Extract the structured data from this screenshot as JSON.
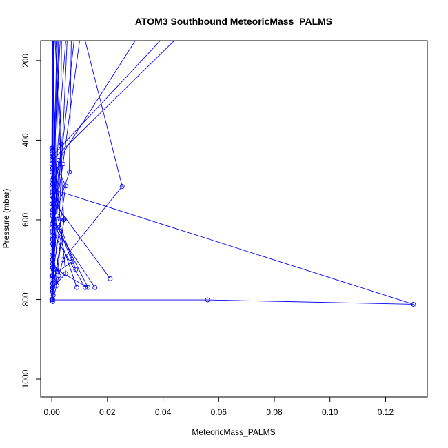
{
  "chart_data": {
    "type": "scatter",
    "title": "ATOM3 Southbound MeteoricMass_PALMS",
    "xlabel": "MeteoricMass_PALMS",
    "ylabel": "Pressure (mbar)",
    "xlim": [
      -0.004,
      0.135
    ],
    "ylim": [
      1045,
      150
    ],
    "y_reversed": true,
    "grid": false,
    "x_ticks": [
      0.0,
      0.02,
      0.04,
      0.06,
      0.08,
      0.1,
      0.12
    ],
    "x_tick_labels": [
      "0.00",
      "0.02",
      "0.04",
      "0.06",
      "0.08",
      "0.10",
      "0.12"
    ],
    "y_ticks": [
      200,
      400,
      600,
      800,
      1000
    ],
    "y_tick_labels": [
      "200",
      "400",
      "600",
      "800",
      "1000"
    ],
    "series": [
      {
        "points": [
          [
            0.0004,
            150
          ],
          [
            0.0014,
            480
          ],
          [
            0.0008,
            640
          ],
          [
            0.0003,
            800
          ]
        ]
      },
      {
        "points": [
          [
            0.0015,
            150
          ],
          [
            0.0035,
            410
          ],
          [
            0.0013,
            560
          ],
          [
            0.0003,
            760
          ]
        ]
      },
      {
        "points": [
          [
            0.0002,
            150
          ],
          [
            0.0004,
            420
          ],
          [
            0.0006,
            600
          ],
          [
            0.0025,
            740
          ]
        ]
      },
      {
        "points": [
          [
            0.0035,
            150
          ],
          [
            0.003,
            470
          ],
          [
            0.0015,
            620
          ],
          [
            0.0003,
            770
          ]
        ]
      },
      {
        "points": [
          [
            0.0024,
            150
          ],
          [
            0.0015,
            520
          ],
          [
            0.0018,
            590
          ],
          [
            0.0086,
            725
          ]
        ]
      },
      {
        "points": [
          [
            0.01,
            150
          ],
          [
            0.004,
            460
          ],
          [
            0.0002,
            630
          ],
          [
            0.012,
            770
          ]
        ]
      },
      {
        "points": [
          [
            0.007,
            150
          ],
          [
            0.0063,
            480
          ],
          [
            0.0002,
            610
          ],
          [
            0.0155,
            770
          ]
        ]
      },
      {
        "points": [
          [
            0.03,
            150
          ],
          [
            0.0025,
            450
          ],
          [
            0.0002,
            590
          ],
          [
            0.009,
            770
          ]
        ]
      },
      {
        "points": [
          [
            0.044,
            150
          ],
          [
            0.0002,
            450
          ],
          [
            0.0012,
            560
          ],
          [
            0.021,
            748
          ]
        ]
      },
      {
        "points": [
          [
            0.039,
            150
          ],
          [
            0.0001,
            440
          ],
          [
            0.005,
            515
          ],
          [
            0.0003,
            740
          ]
        ]
      },
      {
        "points": [
          [
            0.012,
            150
          ],
          [
            0.0253,
            516
          ],
          [
            0.004,
            700
          ],
          [
            0.0003,
            805
          ]
        ]
      },
      {
        "points": [
          [
            0.008,
            150
          ],
          [
            0.002,
            530
          ],
          [
            0.005,
            735
          ],
          [
            0.0003,
            770
          ]
        ]
      },
      {
        "points": [
          [
            0.005,
            150
          ],
          [
            0.001,
            525
          ],
          [
            0.13,
            812
          ],
          [
            0.056,
            801
          ],
          [
            0.0003,
            801
          ]
        ]
      },
      {
        "points": [
          [
            0.003,
            150
          ],
          [
            0.0002,
            530
          ],
          [
            0.0045,
            598
          ],
          [
            0.0008,
            760
          ]
        ]
      },
      {
        "points": [
          [
            0.002,
            150
          ],
          [
            0.0007,
            600
          ],
          [
            0.013,
            770
          ],
          [
            0.0003,
            720
          ]
        ]
      },
      {
        "points": [
          [
            0.0055,
            150
          ],
          [
            0.0025,
            620
          ],
          [
            0.0073,
            705
          ],
          [
            0.0003,
            740
          ]
        ]
      },
      {
        "points": [
          [
            0.0006,
            150
          ],
          [
            0.0003,
            660
          ],
          [
            0.0018,
            765
          ],
          [
            0.0002,
            720
          ]
        ]
      },
      {
        "points": [
          [
            0.0012,
            150
          ],
          [
            0.0043,
            600
          ],
          [
            0.002,
            730
          ],
          [
            0.0003,
            700
          ]
        ]
      },
      {
        "points": [
          [
            0.0009,
            150
          ],
          [
            0.0002,
            500
          ],
          [
            0.0004,
            690
          ],
          [
            0.0002,
            770
          ]
        ]
      },
      {
        "points": [
          [
            0.0018,
            150
          ],
          [
            0.0005,
            560
          ],
          [
            0.0012,
            640
          ],
          [
            0.0002,
            780
          ]
        ]
      },
      {
        "points": [
          [
            0.0002,
            150
          ],
          [
            0.0,
            420
          ],
          [
            0.0,
            460
          ],
          [
            0.0,
            520
          ],
          [
            0.0,
            560
          ],
          [
            0.0,
            620
          ],
          [
            0.0,
            680
          ],
          [
            0.0,
            740
          ],
          [
            0.0,
            800
          ]
        ]
      },
      {
        "points": [
          [
            0.0001,
            150
          ],
          [
            0.0001,
            435
          ],
          [
            0.0001,
            480
          ],
          [
            0.0001,
            540
          ],
          [
            0.0001,
            580
          ],
          [
            0.0001,
            640
          ],
          [
            0.0001,
            700
          ],
          [
            0.0001,
            750
          ],
          [
            0.0001,
            775
          ]
        ]
      },
      {
        "points": [
          [
            0.0003,
            150
          ],
          [
            0.0003,
            425
          ],
          [
            0.0003,
            470
          ],
          [
            0.0003,
            510
          ],
          [
            0.0003,
            575
          ],
          [
            0.0003,
            650
          ],
          [
            0.0003,
            710
          ],
          [
            0.0003,
            760
          ]
        ]
      },
      {
        "points": [
          [
            0.0005,
            150
          ],
          [
            0.0005,
            440
          ],
          [
            0.0005,
            495
          ],
          [
            0.0005,
            545
          ],
          [
            0.0005,
            605
          ],
          [
            0.0005,
            665
          ],
          [
            0.0005,
            725
          ],
          [
            0.0005,
            790
          ]
        ]
      }
    ]
  }
}
